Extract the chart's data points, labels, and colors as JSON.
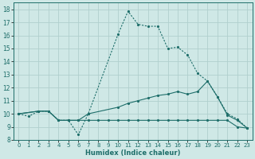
{
  "xlabel": "Humidex (Indice chaleur)",
  "xlim": [
    -0.5,
    23.5
  ],
  "ylim": [
    8,
    18.5
  ],
  "yticks": [
    8,
    9,
    10,
    11,
    12,
    13,
    14,
    15,
    16,
    17,
    18
  ],
  "xticks": [
    0,
    1,
    2,
    3,
    4,
    5,
    6,
    7,
    8,
    9,
    10,
    11,
    12,
    13,
    14,
    15,
    16,
    17,
    18,
    19,
    20,
    21,
    22,
    23
  ],
  "bg_color": "#cfe8e6",
  "grid_color": "#b0d0ce",
  "line_color": "#1e6e6a",
  "line1_x": [
    0,
    1,
    2,
    3,
    4,
    5,
    6,
    7,
    10,
    11,
    12,
    13,
    14,
    15,
    16,
    17,
    18,
    19,
    20,
    21,
    22,
    23
  ],
  "line1_y": [
    10.0,
    9.8,
    10.2,
    10.2,
    9.5,
    9.5,
    8.4,
    10.0,
    16.1,
    17.85,
    16.85,
    16.7,
    16.7,
    15.0,
    15.1,
    14.5,
    13.1,
    12.5,
    11.3,
    10.0,
    9.6,
    8.9
  ],
  "line2_x": [
    0,
    2,
    3,
    4,
    5,
    6,
    7,
    10,
    11,
    12,
    13,
    14,
    15,
    16,
    17,
    18,
    19,
    20,
    21,
    22,
    23
  ],
  "line2_y": [
    10.0,
    10.2,
    10.2,
    9.5,
    9.5,
    9.5,
    10.0,
    10.5,
    10.8,
    11.0,
    11.2,
    11.4,
    11.5,
    11.7,
    11.5,
    11.7,
    12.5,
    11.3,
    9.9,
    9.5,
    8.9
  ],
  "line3_x": [
    0,
    2,
    3,
    4,
    5,
    6,
    7,
    8,
    9,
    10,
    11,
    12,
    13,
    14,
    15,
    16,
    17,
    18,
    19,
    20,
    21,
    22,
    23
  ],
  "line3_y": [
    10.0,
    10.2,
    10.2,
    9.5,
    9.5,
    9.5,
    9.5,
    9.5,
    9.5,
    9.5,
    9.5,
    9.5,
    9.5,
    9.5,
    9.5,
    9.5,
    9.5,
    9.5,
    9.5,
    9.5,
    9.5,
    9.0,
    8.9
  ]
}
